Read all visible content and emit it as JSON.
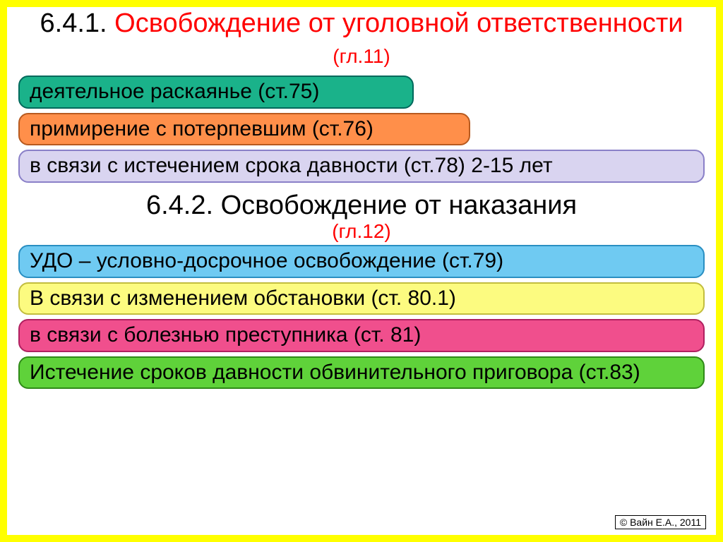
{
  "slide": {
    "border_color": "#ffff00",
    "background": "#ffffff"
  },
  "section1": {
    "number": "6.4.1. ",
    "title": "Освобождение от  уголовной ответственности ",
    "chapter": "(гл.11)"
  },
  "section2": {
    "number": "6.4.2. ",
    "title": "Освобождение от наказания",
    "chapter": "(гл.12)"
  },
  "boxes": {
    "b1": {
      "text": "деятельное раскаянье (ст.75)",
      "fill": "#1ab28a",
      "border": "#00695c",
      "width_class": "w-560"
    },
    "b2": {
      "text": "примирение с потерпевшим (ст.76)",
      "fill": "#ff8f4a",
      "border": "#b85a1f",
      "width_class": "w-640"
    },
    "b3": {
      "text": "в связи с истечением срока давности (ст.78) 2-15 лет",
      "fill": "#d9d4f0",
      "border": "#8a80c8",
      "width_class": "w-full"
    },
    "b4": {
      "text": "УДО – условно-досрочное освобождение (ст.79)",
      "fill": "#6fcaf2",
      "border": "#2a8fc2",
      "width_class": "w-full"
    },
    "b5": {
      "text": "В связи с изменением обстановки (ст. 80.1)",
      "fill": "#fcfb80",
      "border": "#c2bd3e",
      "width_class": "w-full"
    },
    "b6": {
      "text": "в связи с болезнью преступника (ст. 81)",
      "fill": "#f04f8d",
      "border": "#b02060",
      "width_class": "w-full"
    },
    "b7": {
      "text": "Истечение сроков давности обвинительного приговора (ст.83)",
      "fill": "#5fd23a",
      "border": "#2f8a18",
      "width_class": "w-full"
    }
  },
  "copyright": "© Вайн Е.А., 2011",
  "typography": {
    "title_fontsize": 38,
    "chapter_fontsize": 28,
    "box_fontsize": 30,
    "copyright_fontsize": 14,
    "title_number_color": "#000000",
    "title_main_color": "#ff0000",
    "box_text_color": "#000000"
  }
}
